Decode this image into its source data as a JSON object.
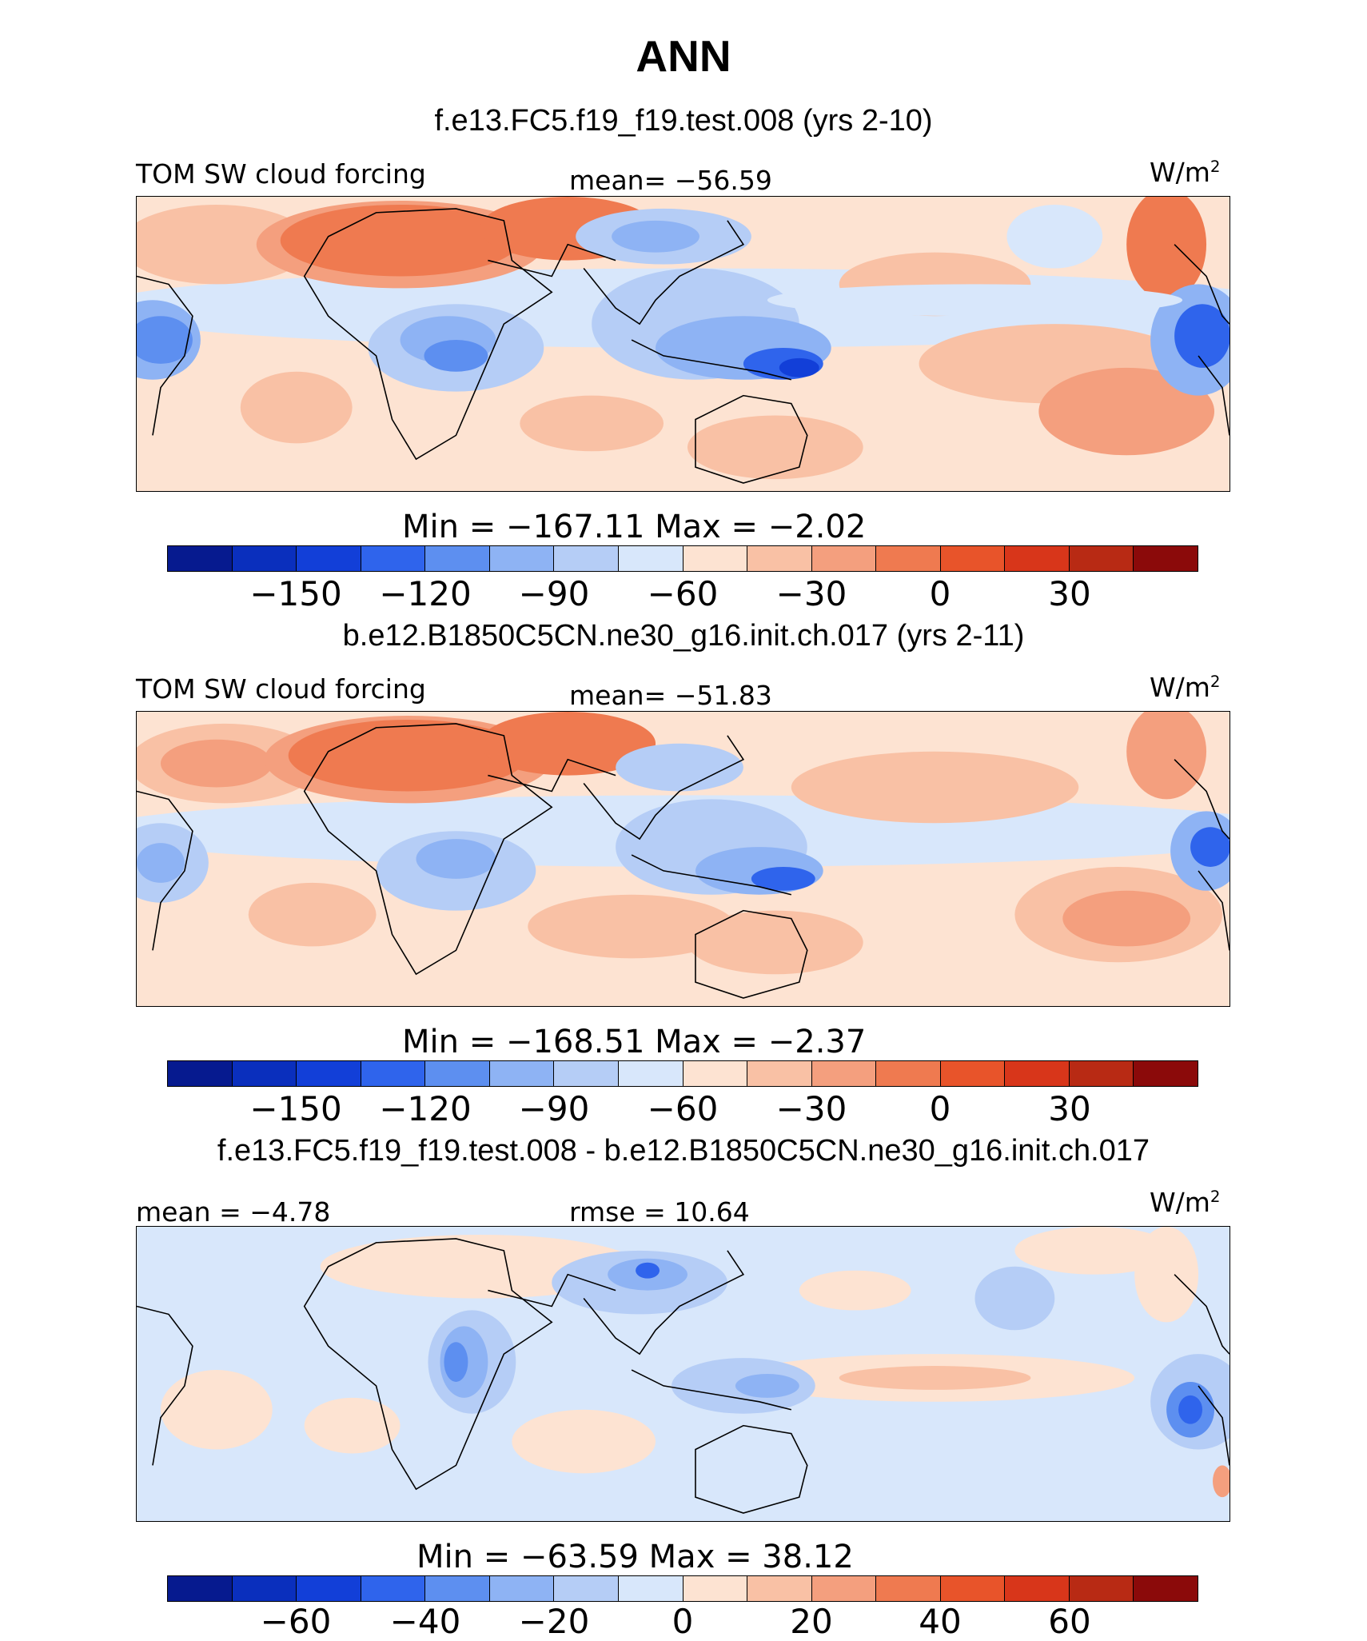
{
  "figure_title": "ANN",
  "units": "W/m",
  "units_sup": "2",
  "colors": {
    "cmap_abs": [
      "#061a8f",
      "#0a2fbd",
      "#123fd8",
      "#2f64ec",
      "#5d8ff0",
      "#8eb3f4",
      "#b5cdf6",
      "#d8e7fb",
      "#fde3d2",
      "#f9c1a5",
      "#f49f7e",
      "#ef7a50",
      "#e8542a",
      "#d8361a",
      "#b82a14",
      "#8b0a0a"
    ],
    "cmap_diff": [
      "#061a8f",
      "#0a2fbd",
      "#123fd8",
      "#2f64ec",
      "#5d8ff0",
      "#8eb3f4",
      "#b5cdf6",
      "#d8e7fb",
      "#fde3d2",
      "#f9c1a5",
      "#f49f7e",
      "#ef7a50",
      "#e8542a",
      "#d8361a",
      "#b82a14",
      "#8b0a0a"
    ]
  },
  "panels": [
    {
      "case": "f.e13.FC5.f19_f19.test.008 (yrs 2-10)",
      "left_label": "TOM SW cloud forcing",
      "center_label": "mean= −56.59",
      "mean": -56.59,
      "min": -167.11,
      "max": -2.02,
      "minmax_text": "Min = −167.11  Max =   −2.02",
      "ticks": [
        "−150",
        "−120",
        "−90",
        "−60",
        "−30",
        "0",
        "30"
      ]
    },
    {
      "case": "b.e12.B1850C5CN.ne30_g16.init.ch.017 (yrs 2-11)",
      "left_label": "TOM SW cloud forcing",
      "center_label": "mean= −51.83",
      "mean": -51.83,
      "min": -168.51,
      "max": -2.37,
      "minmax_text": "Min = −168.51  Max =   −2.37",
      "ticks": [
        "−150",
        "−120",
        "−90",
        "−60",
        "−30",
        "0",
        "30"
      ]
    },
    {
      "case": "f.e13.FC5.f19_f19.test.008 - b.e12.B1850C5CN.ne30_g16.init.ch.017",
      "left_label": "mean =   −4.78",
      "center_label": "rmse =   10.64",
      "mean": -4.78,
      "rmse": 10.64,
      "min": -63.59,
      "max": 38.12,
      "minmax_text": "Min = −63.59  Max =   38.12",
      "ticks": [
        "−60",
        "−40",
        "−20",
        "0",
        "20",
        "40",
        "60"
      ]
    }
  ],
  "chart_data": [
    {
      "type": "heatmap",
      "title": "TOM SW cloud forcing — f.e13.FC5.f19_f19.test.008 (yrs 2-10)",
      "units": "W/m2",
      "mean": -56.59,
      "min": -167.11,
      "max": -2.02,
      "colorbar_levels": [
        -165,
        -150,
        -135,
        -120,
        -105,
        -90,
        -75,
        -60,
        -45,
        -30,
        -15,
        0,
        15,
        30,
        45
      ],
      "colorbar_tick_labels": [
        -150,
        -120,
        -90,
        -60,
        -30,
        0,
        30
      ]
    },
    {
      "type": "heatmap",
      "title": "TOM SW cloud forcing — b.e12.B1850C5CN.ne30_g16.init.ch.017 (yrs 2-11)",
      "units": "W/m2",
      "mean": -51.83,
      "min": -168.51,
      "max": -2.37,
      "colorbar_levels": [
        -165,
        -150,
        -135,
        -120,
        -105,
        -90,
        -75,
        -60,
        -45,
        -30,
        -15,
        0,
        15,
        30,
        45
      ],
      "colorbar_tick_labels": [
        -150,
        -120,
        -90,
        -60,
        -30,
        0,
        30
      ]
    },
    {
      "type": "heatmap",
      "title": "f.e13.FC5.f19_f19.test.008 - b.e12.B1850C5CN.ne30_g16.init.ch.017",
      "units": "W/m2",
      "mean": -4.78,
      "rmse": 10.64,
      "min": -63.59,
      "max": 38.12,
      "colorbar_levels": [
        -70,
        -60,
        -50,
        -40,
        -30,
        -20,
        -10,
        0,
        10,
        20,
        30,
        40,
        50,
        60,
        70
      ],
      "colorbar_tick_labels": [
        -60,
        -40,
        -20,
        0,
        20,
        40,
        60
      ]
    }
  ]
}
